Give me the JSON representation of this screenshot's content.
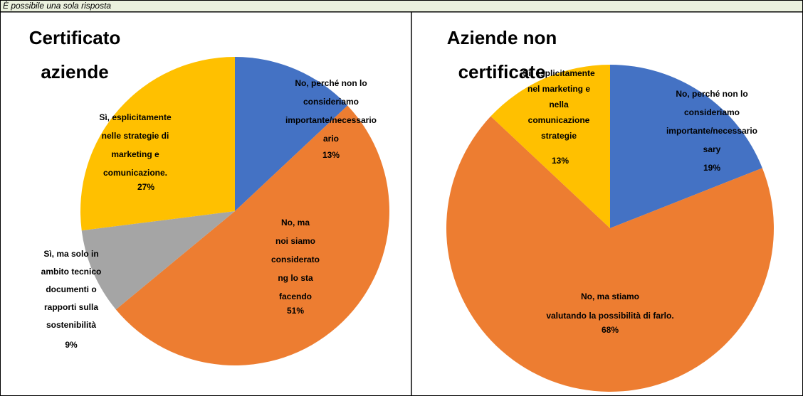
{
  "header": "È possibile una sola risposta",
  "chart_data": [
    {
      "type": "pie",
      "title": "Certificato\naziende",
      "categories": [
        "No, perché non lo\nconsideriamo\nimportante/necessario\nario",
        "No, ma\nnoi siamo\nconsiderato\nng lo sta\nfacendo",
        "Sì, ma solo in\nambito tecnico\ndocumenti o\nrapporti sulla\nsostenibilità",
        "Sì, esplicitamente\nnelle strategie di\nmarketing e\ncomunicazione."
      ],
      "values": [
        13,
        51,
        9,
        27
      ],
      "value_labels": [
        "13%",
        "51%",
        "9%",
        "27%"
      ],
      "colors": [
        "#4472c4",
        "#ed7d31",
        "#a5a5a5",
        "#ffc000"
      ]
    },
    {
      "type": "pie",
      "title": "Aziende non\ncertificate",
      "categories": [
        "No, perché non lo\nconsideriamo\nimportante/necessario\nsary",
        "No, ma stiamo\nvalutando la possibilità di farlo.",
        "Sì, esplicitamente\nnel marketing e\nnella\ncomunicazione\nstrategie"
      ],
      "values": [
        19,
        68,
        13
      ],
      "value_labels": [
        "19%",
        "68%",
        "13%"
      ],
      "colors": [
        "#4472c4",
        "#ed7d31",
        "#ffc000"
      ]
    }
  ]
}
